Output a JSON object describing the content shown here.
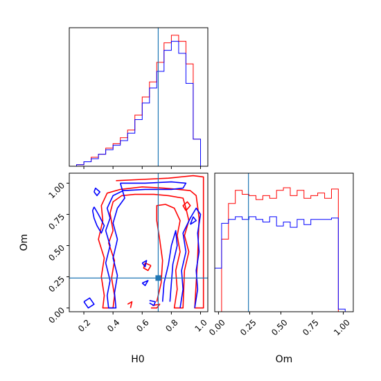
{
  "colors": {
    "chain_a": "#ff0000",
    "chain_b": "#0000ff",
    "truth": "#1f77b4"
  },
  "chart_data": {
    "type": "corner",
    "parameters": [
      "H0",
      "Om"
    ],
    "truth": {
      "H0": 0.71,
      "Om": 0.24
    },
    "axes": {
      "H0": {
        "label": "H0",
        "range": [
          0.1,
          1.05
        ],
        "ticks": [
          0.2,
          0.4,
          0.6,
          0.8,
          1.0
        ],
        "tick_labels": [
          "0.2",
          "0.4",
          "0.6",
          "0.8",
          "1.0"
        ]
      },
      "Om": {
        "label": "Om",
        "range": [
          -0.03,
          1.08
        ],
        "ticks": [
          0.0,
          0.25,
          0.5,
          0.75,
          1.0
        ],
        "tick_labels": [
          "0.00",
          "0.25",
          "0.50",
          "0.75",
          "1.00"
        ]
      }
    },
    "histograms": {
      "H0": {
        "bin_edges": [
          0.1,
          0.15,
          0.2,
          0.25,
          0.3,
          0.35,
          0.4,
          0.45,
          0.5,
          0.55,
          0.6,
          0.65,
          0.7,
          0.75,
          0.8,
          0.85,
          0.9,
          0.95,
          1.0,
          1.05
        ],
        "series": [
          {
            "color_key": "chain_a",
            "values": [
              0,
              0.01,
              0.03,
              0.06,
              0.08,
              0.12,
              0.15,
              0.19,
              0.24,
              0.34,
              0.46,
              0.56,
              0.69,
              0.82,
              0.87,
              0.83,
              0.68,
              0.18,
              0.0
            ]
          },
          {
            "color_key": "chain_b",
            "values": [
              0,
              0.01,
              0.03,
              0.05,
              0.08,
              0.11,
              0.14,
              0.17,
              0.22,
              0.31,
              0.42,
              0.52,
              0.63,
              0.77,
              0.83,
              0.75,
              0.55,
              0.18,
              0.0
            ]
          }
        ]
      },
      "Om": {
        "bin_edges": [
          -0.03,
          0.025,
          0.08,
          0.135,
          0.19,
          0.245,
          0.3,
          0.355,
          0.41,
          0.465,
          0.52,
          0.575,
          0.63,
          0.685,
          0.74,
          0.795,
          0.85,
          0.905,
          0.96,
          1.015,
          1.08
        ],
        "series": [
          {
            "color_key": "chain_a",
            "values": [
              0.0,
              0.55,
              0.82,
              0.92,
              0.89,
              0.88,
              0.85,
              0.88,
              0.86,
              0.92,
              0.94,
              0.88,
              0.92,
              0.86,
              0.88,
              0.9,
              0.86,
              0.93,
              0.0,
              0.0
            ]
          },
          {
            "color_key": "chain_b",
            "values": [
              0.33,
              0.67,
              0.7,
              0.72,
              0.7,
              0.72,
              0.7,
              0.68,
              0.72,
              0.65,
              0.68,
              0.64,
              0.7,
              0.66,
              0.7,
              0.7,
              0.7,
              0.71,
              0.02,
              0.0
            ]
          }
        ]
      }
    },
    "contours": [
      {
        "color_key": "chain_a",
        "paths": [
          [
            [
              0.42,
              1.02
            ],
            [
              0.6,
              1.03
            ],
            [
              0.78,
              1.04
            ],
            [
              0.95,
              1.06
            ],
            [
              1.02,
              1.05
            ],
            [
              1.02,
              0.0
            ],
            [
              0.96,
              0.0
            ],
            [
              0.98,
              0.4
            ],
            [
              0.99,
              0.72
            ],
            [
              0.97,
              0.9
            ],
            [
              0.93,
              0.94
            ],
            [
              0.85,
              0.95
            ],
            [
              0.75,
              0.96
            ],
            [
              0.6,
              0.97
            ],
            [
              0.45,
              0.95
            ],
            [
              0.36,
              0.92
            ],
            [
              0.32,
              0.82
            ],
            [
              0.33,
              0.7
            ],
            [
              0.3,
              0.55
            ],
            [
              0.34,
              0.4
            ],
            [
              0.32,
              0.25
            ],
            [
              0.34,
              0.1
            ],
            [
              0.33,
              0.0
            ],
            [
              0.4,
              0.0
            ],
            [
              0.41,
              0.1
            ],
            [
              0.39,
              0.24
            ],
            [
              0.41,
              0.38
            ],
            [
              0.37,
              0.52
            ],
            [
              0.4,
              0.62
            ],
            [
              0.38,
              0.76
            ],
            [
              0.4,
              0.85
            ],
            [
              0.46,
              0.9
            ],
            [
              0.55,
              0.91
            ],
            [
              0.68,
              0.91
            ],
            [
              0.78,
              0.9
            ],
            [
              0.88,
              0.88
            ],
            [
              0.9,
              0.8
            ],
            [
              0.92,
              0.7
            ],
            [
              0.89,
              0.58
            ],
            [
              0.92,
              0.45
            ],
            [
              0.89,
              0.3
            ],
            [
              0.88,
              0.0
            ],
            [
              0.82,
              0.0
            ],
            [
              0.84,
              0.15
            ],
            [
              0.83,
              0.3
            ],
            [
              0.86,
              0.45
            ],
            [
              0.84,
              0.58
            ],
            [
              0.86,
              0.7
            ],
            [
              0.82,
              0.8
            ],
            [
              0.76,
              0.83
            ],
            [
              0.7,
              0.82
            ],
            [
              0.7,
              0.7
            ],
            [
              0.72,
              0.55
            ],
            [
              0.74,
              0.38
            ],
            [
              0.73,
              0.2
            ],
            [
              0.7,
              0.05
            ]
          ],
          [
            [
              0.66,
              0.34
            ],
            [
              0.62,
              0.36
            ],
            [
              0.61,
              0.32
            ],
            [
              0.64,
              0.3
            ],
            [
              0.66,
              0.34
            ]
          ],
          [
            [
              0.9,
              0.78
            ],
            [
              0.93,
              0.82
            ],
            [
              0.91,
              0.85
            ],
            [
              0.88,
              0.82
            ],
            [
              0.9,
              0.78
            ]
          ],
          [
            [
              0.67,
              0.02
            ],
            [
              0.72,
              0.03
            ],
            [
              0.7,
              0.0
            ],
            [
              0.66,
              0.0
            ]
          ],
          [
            [
              0.5,
              0.03
            ],
            [
              0.53,
              0.05
            ],
            [
              0.52,
              0.0
            ]
          ]
        ]
      },
      {
        "color_key": "chain_b",
        "paths": [
          [
            [
              0.45,
              1.0
            ],
            [
              0.62,
              1.0
            ],
            [
              0.8,
              1.01
            ],
            [
              0.9,
              1.0
            ],
            [
              0.88,
              0.96
            ],
            [
              0.8,
              0.95
            ],
            [
              0.62,
              0.95
            ],
            [
              0.47,
              0.94
            ],
            [
              0.4,
              0.9
            ],
            [
              0.36,
              0.8
            ],
            [
              0.38,
              0.72
            ],
            [
              0.35,
              0.62
            ],
            [
              0.38,
              0.5
            ],
            [
              0.35,
              0.36
            ],
            [
              0.38,
              0.22
            ],
            [
              0.36,
              0.1
            ],
            [
              0.37,
              0.0
            ],
            [
              0.42,
              0.0
            ],
            [
              0.41,
              0.12
            ],
            [
              0.43,
              0.26
            ],
            [
              0.4,
              0.4
            ],
            [
              0.43,
              0.55
            ],
            [
              0.4,
              0.68
            ],
            [
              0.43,
              0.8
            ],
            [
              0.48,
              0.88
            ],
            [
              0.45,
              1.0
            ]
          ],
          [
            [
              0.86,
              0.0
            ],
            [
              0.88,
              0.15
            ],
            [
              0.87,
              0.3
            ],
            [
              0.9,
              0.45
            ],
            [
              0.88,
              0.6
            ],
            [
              0.93,
              0.72
            ],
            [
              0.97,
              0.8
            ],
            [
              1.0,
              0.75
            ],
            [
              0.98,
              0.6
            ],
            [
              0.99,
              0.45
            ],
            [
              0.97,
              0.3
            ],
            [
              0.98,
              0.15
            ],
            [
              0.96,
              0.0
            ]
          ],
          [
            [
              0.74,
              0.05
            ],
            [
              0.75,
              0.2
            ],
            [
              0.78,
              0.35
            ],
            [
              0.8,
              0.5
            ],
            [
              0.83,
              0.62
            ],
            [
              0.84,
              0.5
            ],
            [
              0.81,
              0.35
            ],
            [
              0.8,
              0.2
            ],
            [
              0.79,
              0.05
            ]
          ],
          [
            [
              0.27,
              0.81
            ],
            [
              0.3,
              0.75
            ],
            [
              0.34,
              0.66
            ],
            [
              0.32,
              0.6
            ],
            [
              0.29,
              0.66
            ],
            [
              0.27,
              0.72
            ],
            [
              0.26,
              0.78
            ],
            [
              0.27,
              0.81
            ]
          ],
          [
            [
              0.27,
              0.93
            ],
            [
              0.29,
              0.9
            ],
            [
              0.31,
              0.93
            ],
            [
              0.28,
              0.96
            ],
            [
              0.27,
              0.93
            ]
          ],
          [
            [
              0.2,
              0.05
            ],
            [
              0.24,
              0.08
            ],
            [
              0.27,
              0.03
            ],
            [
              0.23,
              0.0
            ],
            [
              0.2,
              0.05
            ]
          ],
          [
            [
              0.6,
              0.2
            ],
            [
              0.64,
              0.22
            ],
            [
              0.62,
              0.18
            ],
            [
              0.6,
              0.2
            ]
          ],
          [
            [
              0.65,
              0.06
            ],
            [
              0.69,
              0.05
            ],
            [
              0.68,
              0.02
            ],
            [
              0.65,
              0.04
            ]
          ],
          [
            [
              0.93,
              0.67
            ],
            [
              0.97,
              0.7
            ],
            [
              0.95,
              0.73
            ],
            [
              0.93,
              0.67
            ]
          ],
          [
            [
              0.6,
              0.36
            ],
            [
              0.63,
              0.38
            ],
            [
              0.62,
              0.33
            ],
            [
              0.6,
              0.36
            ]
          ]
        ]
      }
    ],
    "truth_marker": {
      "H0": 0.71,
      "Om": 0.24
    }
  }
}
